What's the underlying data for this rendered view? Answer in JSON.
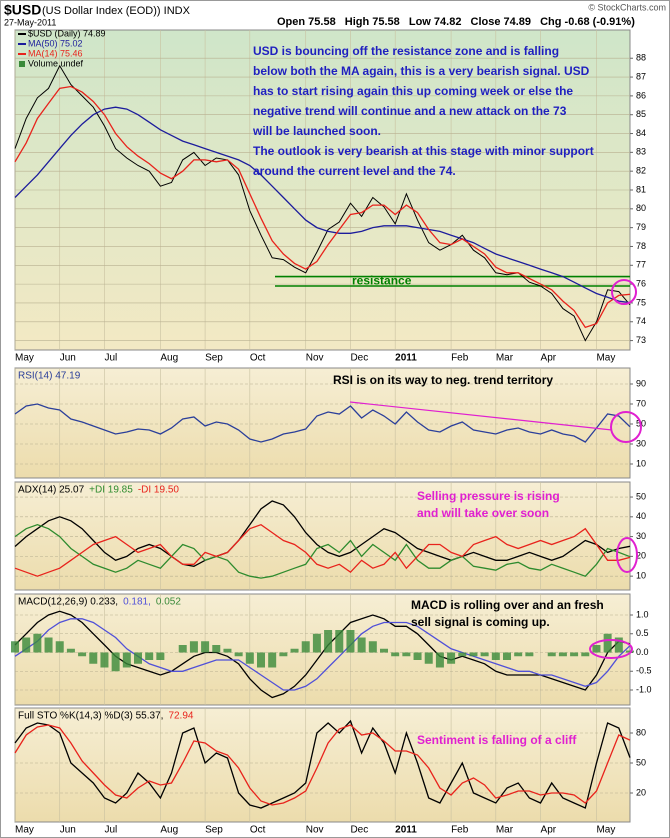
{
  "chart_data": [
    {
      "type": "line",
      "symbol": "$USD",
      "name": "(US Dollar Index (EOD)) INDX",
      "date": "27-May-2011",
      "quote": [
        "Open 75.58",
        "High 75.58",
        "Low 74.82",
        "Close 74.89",
        "Chg -0.68 (-0.91%)"
      ],
      "credit": "© StockCharts.com",
      "categories": [
        "May",
        null,
        null,
        null,
        "Jun",
        null,
        null,
        null,
        "Jul",
        null,
        null,
        null,
        null,
        "Aug",
        null,
        null,
        null,
        "Sep",
        null,
        null,
        null,
        "Oct",
        null,
        null,
        null,
        null,
        "Nov",
        null,
        null,
        null,
        "Dec",
        null,
        null,
        null,
        "2011",
        null,
        null,
        null,
        null,
        "Feb",
        null,
        null,
        null,
        "Mar",
        null,
        null,
        null,
        "Apr",
        null,
        null,
        null,
        null,
        "May",
        null,
        null,
        null
      ],
      "series": [
        {
          "name": "$USD (Daily) 74.89",
          "color": "#000000",
          "values": [
            83.2,
            84.8,
            85.9,
            86.4,
            87.6,
            86.6,
            86.0,
            85.4,
            84.4,
            83.2,
            82.7,
            82.3,
            82.0,
            81.2,
            81.4,
            82.6,
            83.0,
            82.3,
            82.7,
            82.6,
            81.8,
            79.9,
            78.6,
            77.4,
            77.3,
            76.9,
            76.6,
            77.7,
            78.9,
            79.3,
            80.3,
            79.6,
            80.6,
            80.1,
            79.2,
            80.8,
            79.4,
            78.2,
            77.8,
            78.1,
            78.6,
            77.8,
            77.4,
            76.6,
            76.5,
            76.6,
            76.1,
            75.9,
            75.5,
            74.7,
            74.3,
            73.0,
            74.0,
            75.7,
            75.6,
            74.9
          ]
        },
        {
          "name": "MA(50) 75.02",
          "color": "#1c1c9c",
          "values": [
            80.6,
            81.2,
            81.8,
            82.5,
            83.2,
            83.9,
            84.5,
            85.0,
            85.3,
            85.4,
            85.3,
            85.0,
            84.6,
            84.2,
            83.9,
            83.6,
            83.4,
            83.2,
            83.0,
            82.8,
            82.6,
            82.3,
            81.8,
            81.2,
            80.6,
            80.0,
            79.4,
            79.0,
            78.8,
            78.7,
            78.7,
            78.8,
            79.0,
            79.1,
            79.1,
            79.1,
            79.0,
            78.9,
            78.8,
            78.6,
            78.4,
            78.2,
            77.9,
            77.6,
            77.4,
            77.2,
            77.0,
            76.8,
            76.6,
            76.4,
            76.1,
            75.8,
            75.5,
            75.3,
            75.1,
            75.02
          ]
        },
        {
          "name": "MA(14) 75.46",
          "color": "#e8231c",
          "values": [
            82.5,
            83.5,
            84.8,
            85.6,
            86.4,
            86.5,
            86.2,
            85.7,
            85.0,
            84.0,
            83.3,
            82.8,
            82.4,
            81.9,
            81.6,
            82.0,
            82.6,
            82.6,
            82.5,
            82.6,
            82.1,
            80.8,
            79.5,
            78.3,
            77.6,
            77.1,
            76.8,
            77.2,
            78.1,
            78.9,
            79.7,
            79.8,
            80.2,
            80.2,
            79.7,
            80.2,
            79.8,
            78.9,
            78.2,
            78.1,
            78.4,
            78.0,
            77.6,
            76.9,
            76.6,
            76.6,
            76.3,
            76.0,
            75.7,
            75.1,
            74.6,
            73.7,
            73.9,
            75.0,
            75.4,
            75.46
          ]
        }
      ],
      "volume_label": "Volume undef",
      "resistance": {
        "label": "resistance",
        "levels": [
          76.4,
          75.9
        ],
        "color": "#008000"
      },
      "annotation": [
        "USD is bouncing off the resistance zone and is falling",
        "below both the MA again, this is a very bearish signal. USD",
        "has to start rising again this up coming week or else the",
        "negative trend will continue and a new attack on the 73",
        "will be launched soon.",
        "The outlook is very bearish at this stage with minor support",
        "around the current level and the 74."
      ],
      "annotation_color": "#1f1fbf",
      "ylim": [
        72.5,
        89.5
      ],
      "yticks": [
        73,
        74,
        75,
        76,
        77,
        78,
        79,
        80,
        81,
        82,
        83,
        84,
        85,
        86,
        87,
        88
      ],
      "grid": true
    },
    {
      "type": "line",
      "series": [
        {
          "name": "RSI(14) 47.19",
          "color": "#2b3f9a",
          "values": [
            60,
            68,
            70,
            66,
            64,
            55,
            52,
            48,
            44,
            40,
            42,
            45,
            44,
            40,
            46,
            55,
            57,
            48,
            52,
            50,
            44,
            35,
            32,
            35,
            40,
            42,
            45,
            58,
            62,
            60,
            68,
            56,
            64,
            58,
            50,
            62,
            52,
            44,
            42,
            48,
            52,
            44,
            42,
            40,
            44,
            46,
            42,
            40,
            44,
            40,
            38,
            32,
            46,
            60,
            58,
            47.19
          ]
        }
      ],
      "annotation": [
        "RSI is on its way to neg. trend territory"
      ],
      "annotation_color": "#000000",
      "ylim": [
        -4,
        106
      ],
      "yticks": [
        10,
        30,
        50,
        70,
        90
      ],
      "grid": true
    },
    {
      "type": "line",
      "series": [
        {
          "name": "ADX(14) 25.07",
          "color": "#000000",
          "values": [
            25,
            30,
            34,
            38,
            40,
            38,
            34,
            28,
            22,
            18,
            20,
            24,
            26,
            24,
            20,
            16,
            15,
            18,
            20,
            22,
            28,
            36,
            44,
            48,
            46,
            40,
            32,
            26,
            22,
            20,
            22,
            26,
            30,
            34,
            32,
            28,
            24,
            22,
            20,
            18,
            20,
            22,
            20,
            18,
            18,
            20,
            22,
            20,
            18,
            20,
            24,
            28,
            26,
            22,
            24,
            25.07
          ]
        },
        {
          "name": "+DI 19.85",
          "color": "#2e8b2e",
          "values": [
            30,
            34,
            36,
            34,
            30,
            24,
            20,
            16,
            14,
            12,
            14,
            18,
            16,
            14,
            20,
            26,
            24,
            18,
            20,
            18,
            12,
            10,
            9,
            10,
            12,
            14,
            16,
            24,
            26,
            22,
            28,
            20,
            26,
            22,
            18,
            26,
            18,
            14,
            14,
            18,
            20,
            15,
            14,
            13,
            16,
            17,
            14,
            13,
            16,
            14,
            12,
            10,
            16,
            24,
            22,
            19.85
          ]
        },
        {
          "name": "-DI 19.50",
          "color": "#e8231c",
          "values": [
            14,
            12,
            10,
            12,
            14,
            18,
            22,
            26,
            28,
            30,
            26,
            22,
            24,
            26,
            20,
            16,
            16,
            22,
            20,
            22,
            28,
            34,
            36,
            32,
            28,
            26,
            22,
            16,
            14,
            16,
            12,
            18,
            14,
            16,
            22,
            14,
            20,
            26,
            26,
            22,
            20,
            26,
            28,
            30,
            26,
            24,
            26,
            28,
            26,
            28,
            30,
            34,
            26,
            18,
            18,
            19.5
          ]
        }
      ],
      "annotation": [
        "Selling pressure is rising",
        "and will take over soon"
      ],
      "annotation_color": "#e020d0",
      "ylim": [
        3,
        57.6
      ],
      "yticks": [
        10,
        20,
        30,
        40,
        50
      ],
      "grid": true
    },
    {
      "type": "line",
      "series": [
        {
          "name": "MACD(12,26,9) 0.233,",
          "color": "#000000",
          "values": [
            0.2,
            0.5,
            0.8,
            1.0,
            1.1,
            1.0,
            0.8,
            0.5,
            0.2,
            -0.1,
            -0.3,
            -0.4,
            -0.5,
            -0.6,
            -0.5,
            -0.3,
            -0.1,
            0.0,
            0.0,
            -0.1,
            -0.3,
            -0.7,
            -1.0,
            -1.2,
            -1.1,
            -0.9,
            -0.6,
            -0.2,
            0.2,
            0.5,
            0.8,
            0.9,
            1.0,
            0.9,
            0.7,
            0.7,
            0.5,
            0.2,
            -0.1,
            -0.2,
            -0.1,
            -0.2,
            -0.3,
            -0.5,
            -0.6,
            -0.6,
            -0.6,
            -0.6,
            -0.7,
            -0.8,
            -0.9,
            -1.0,
            -0.6,
            0.0,
            0.3,
            0.233
          ]
        },
        {
          "name": "0.181,",
          "color": "#5050d8",
          "values": [
            -0.1,
            0.1,
            0.3,
            0.6,
            0.8,
            0.9,
            0.9,
            0.8,
            0.6,
            0.4,
            0.1,
            -0.1,
            -0.3,
            -0.4,
            -0.5,
            -0.5,
            -0.4,
            -0.3,
            -0.2,
            -0.2,
            -0.2,
            -0.4,
            -0.6,
            -0.8,
            -1.0,
            -1.0,
            -0.9,
            -0.7,
            -0.4,
            -0.1,
            0.2,
            0.5,
            0.7,
            0.8,
            0.8,
            0.8,
            0.7,
            0.5,
            0.3,
            0.1,
            0.0,
            -0.1,
            -0.2,
            -0.3,
            -0.4,
            -0.5,
            -0.5,
            -0.6,
            -0.6,
            -0.7,
            -0.8,
            -0.9,
            -0.8,
            -0.5,
            -0.1,
            0.181
          ]
        },
        {
          "name": "0.052",
          "color": "#3a8a3a",
          "kind": "bar",
          "values": [
            0.3,
            0.4,
            0.5,
            0.4,
            0.3,
            0.1,
            -0.1,
            -0.3,
            -0.4,
            -0.5,
            -0.4,
            -0.3,
            -0.2,
            -0.2,
            0.0,
            0.2,
            0.3,
            0.3,
            0.2,
            0.1,
            -0.1,
            -0.3,
            -0.4,
            -0.4,
            -0.1,
            0.1,
            0.3,
            0.5,
            0.6,
            0.6,
            0.6,
            0.4,
            0.3,
            0.1,
            -0.1,
            -0.1,
            -0.2,
            -0.3,
            -0.4,
            -0.3,
            -0.1,
            -0.1,
            -0.1,
            -0.2,
            -0.2,
            -0.1,
            -0.1,
            0.0,
            -0.1,
            -0.1,
            -0.1,
            -0.1,
            0.2,
            0.5,
            0.4,
            0.052
          ]
        }
      ],
      "annotation": [
        "MACD is rolling over and an fresh",
        "sell signal is coming up."
      ],
      "annotation_color": "#000000",
      "ylim": [
        -1.4,
        1.56
      ],
      "yticks": [
        {
          "value": -1,
          "label": "-1.0"
        },
        {
          "value": -0.5,
          "label": "-0.5"
        },
        {
          "value": 0,
          "label": "0.0"
        },
        {
          "value": 0.5,
          "label": "0.5"
        },
        {
          "value": 1,
          "label": "1.0"
        }
      ],
      "grid": true
    },
    {
      "type": "line",
      "categories": [
        "May",
        null,
        null,
        null,
        "Jun",
        null,
        null,
        null,
        "Jul",
        null,
        null,
        null,
        null,
        "Aug",
        null,
        null,
        null,
        "Sep",
        null,
        null,
        null,
        "Oct",
        null,
        null,
        null,
        null,
        "Nov",
        null,
        null,
        null,
        "Dec",
        null,
        null,
        null,
        "2011",
        null,
        null,
        null,
        null,
        "Feb",
        null,
        null,
        null,
        "Mar",
        null,
        null,
        null,
        "Apr",
        null,
        null,
        null,
        null,
        "May",
        null,
        null,
        null
      ],
      "series": [
        {
          "name": "Full STO %K(14,3) %D(3) 55.37,",
          "color": "#000000",
          "values": [
            70,
            85,
            90,
            88,
            80,
            50,
            40,
            30,
            15,
            10,
            20,
            40,
            30,
            15,
            40,
            80,
            85,
            50,
            60,
            55,
            20,
            8,
            5,
            10,
            15,
            20,
            30,
            80,
            90,
            80,
            92,
            60,
            85,
            70,
            40,
            80,
            50,
            15,
            10,
            30,
            50,
            20,
            15,
            10,
            25,
            30,
            15,
            10,
            30,
            15,
            10,
            5,
            50,
            90,
            85,
            55.37
          ]
        },
        {
          "name": "72.94",
          "color": "#e8231c",
          "values": [
            60,
            78,
            86,
            88,
            85,
            70,
            52,
            40,
            28,
            18,
            15,
            25,
            32,
            28,
            30,
            50,
            72,
            70,
            62,
            58,
            45,
            25,
            12,
            8,
            10,
            15,
            22,
            45,
            70,
            84,
            88,
            78,
            80,
            72,
            62,
            62,
            58,
            45,
            25,
            18,
            30,
            35,
            28,
            15,
            18,
            22,
            22,
            18,
            20,
            20,
            18,
            10,
            22,
            50,
            78,
            72.94
          ]
        }
      ],
      "annotation": [
        "Sentiment is falling of a cliff"
      ],
      "annotation_color": "#e020d0",
      "ylim": [
        -9,
        105
      ],
      "yticks": [
        20,
        50,
        80
      ],
      "grid": true
    }
  ]
}
